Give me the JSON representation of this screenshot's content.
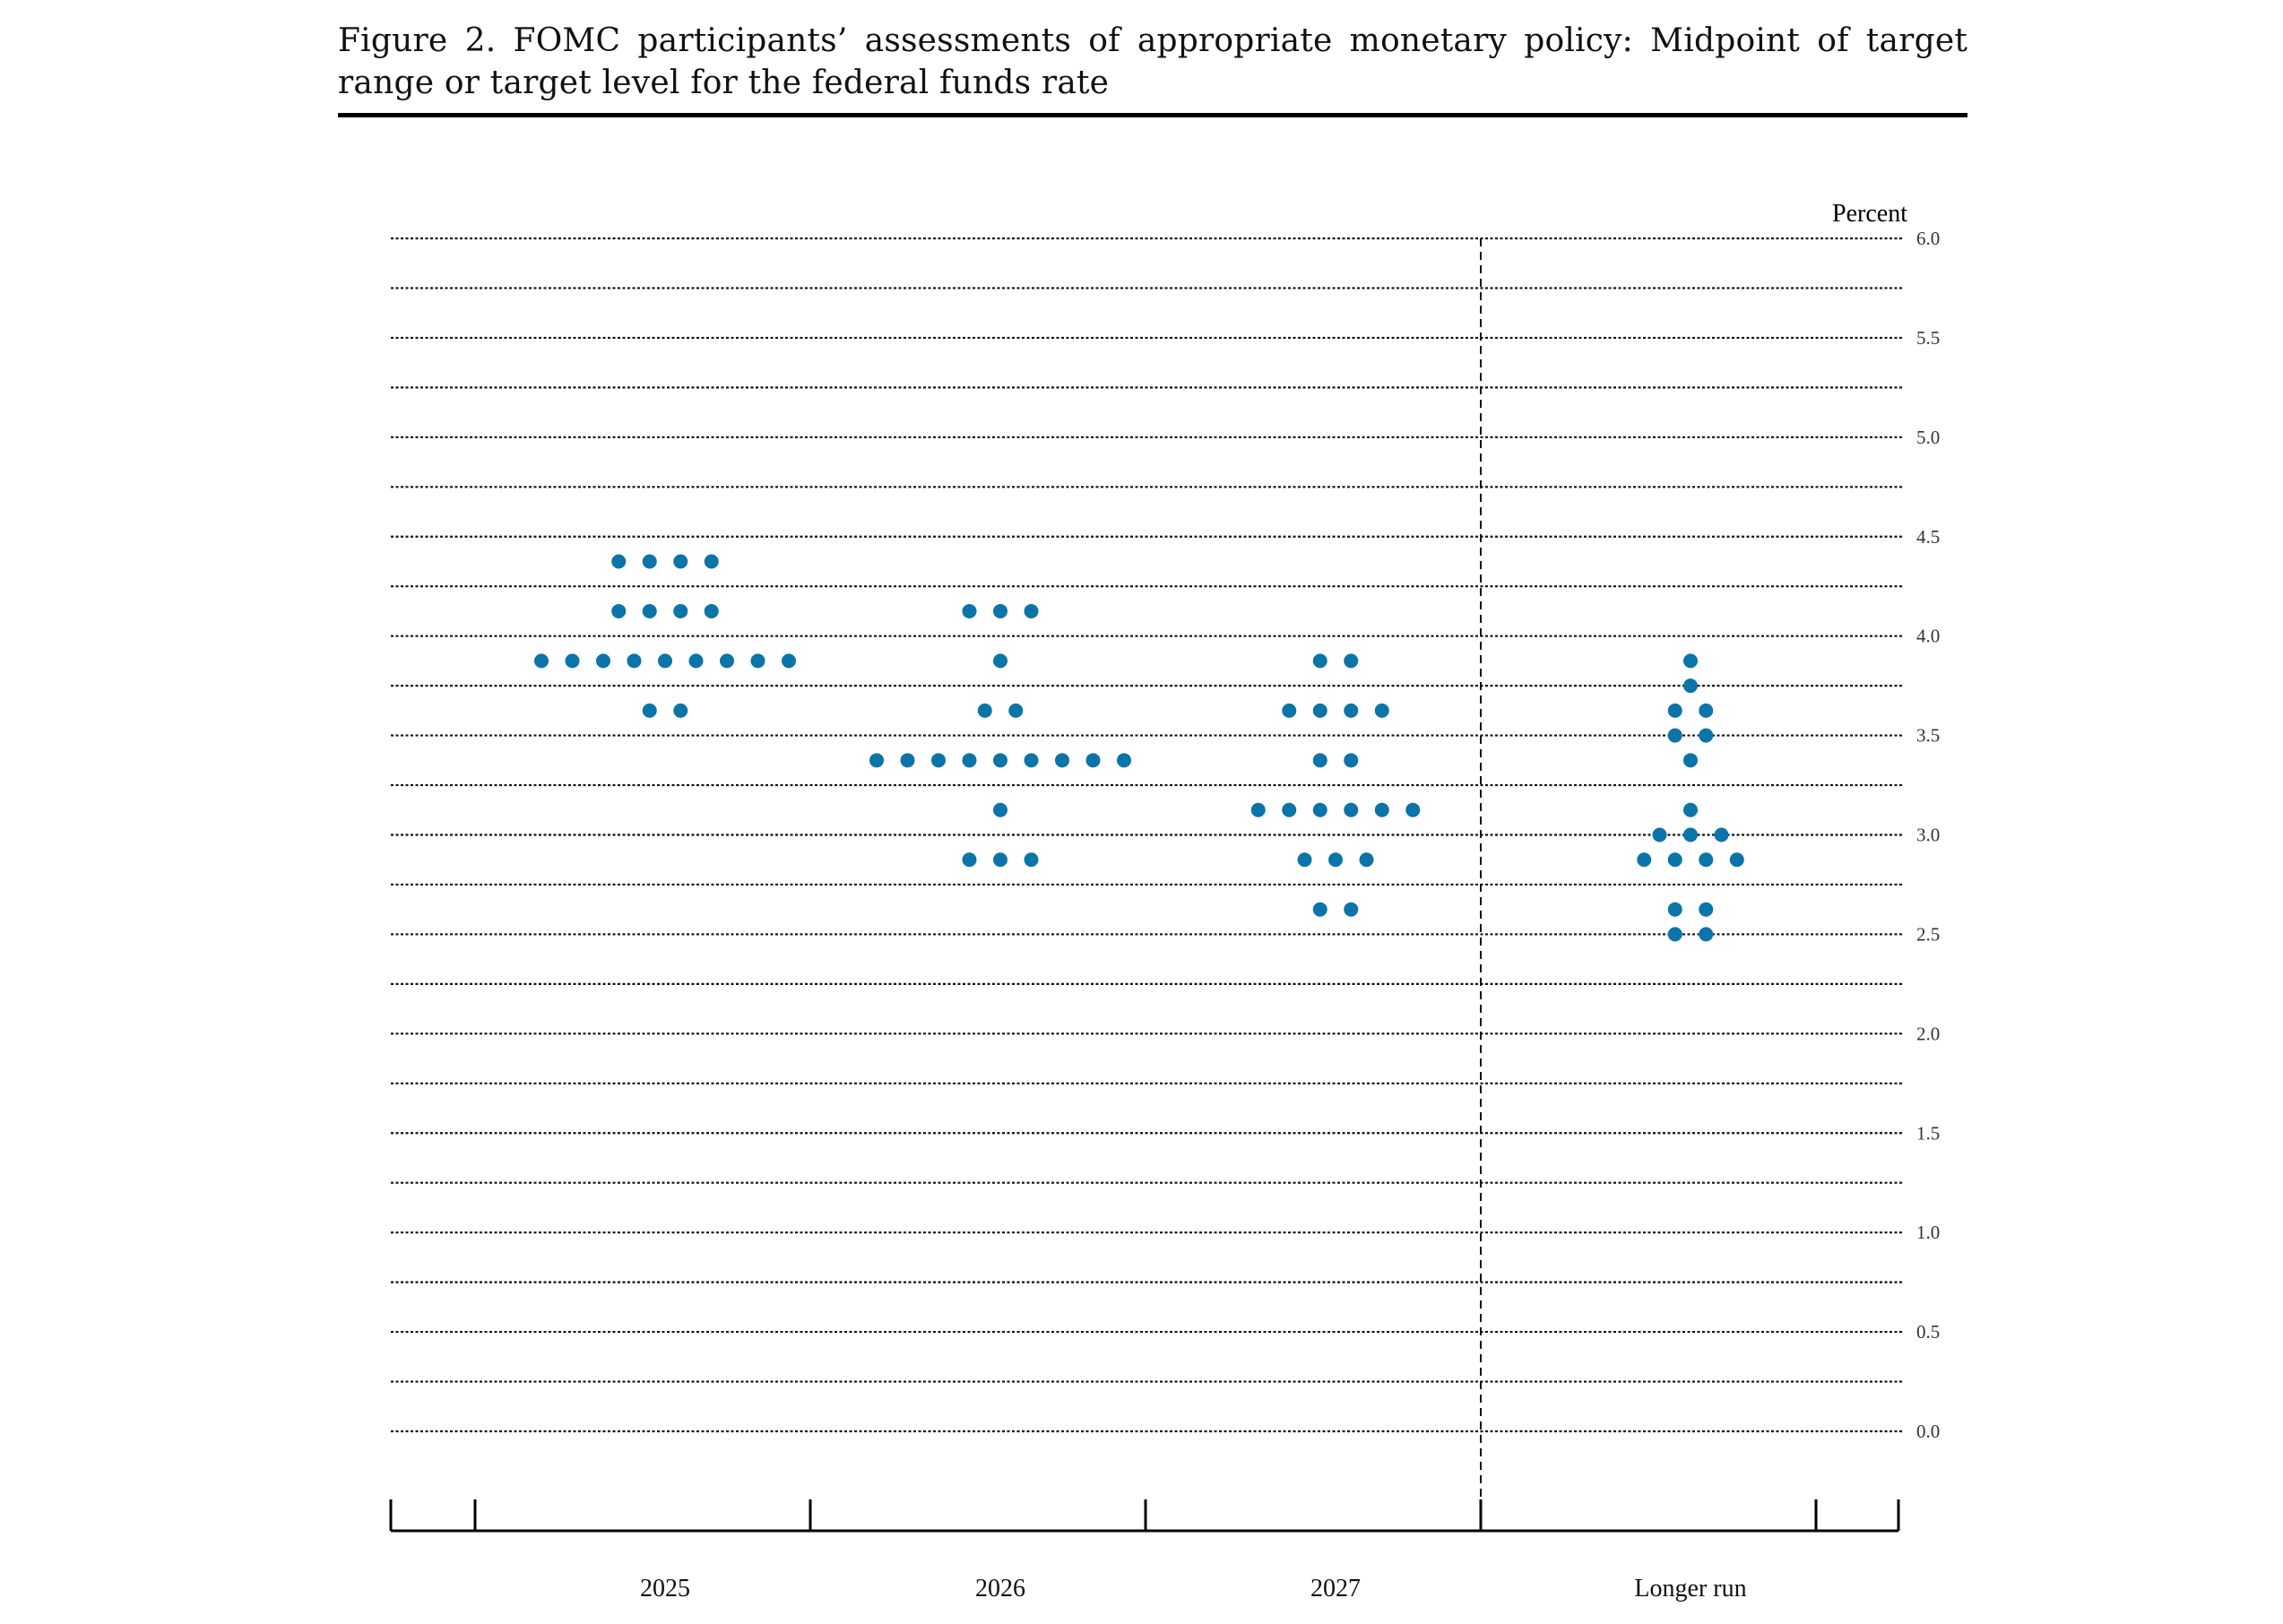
{
  "figure": {
    "title": "Figure 2.  FOMC participants’ assessments of appropriate monetary policy: Midpoint of target range or target level for the federal funds rate"
  },
  "chart_data": {
    "type": "scatter",
    "title": "Figure 2.  FOMC participants’ assessments of appropriate monetary policy: Midpoint of target range or target level for the federal funds rate",
    "ylabel": "Percent",
    "xlabel": "",
    "ylim": [
      0.0,
      6.0
    ],
    "ytick_step": 0.25,
    "ytick_labels": [
      "0.0",
      "0.5",
      "1.0",
      "1.5",
      "2.0",
      "2.5",
      "3.0",
      "3.5",
      "4.0",
      "4.5",
      "5.0",
      "5.5",
      "6.0"
    ],
    "categories": [
      "2025",
      "2026",
      "2027",
      "Longer run"
    ],
    "grid": true,
    "dot_color": "#0b74a8",
    "groups": [
      {
        "category": "2025",
        "points": [
          {
            "y": 4.375,
            "count": 4
          },
          {
            "y": 4.125,
            "count": 4
          },
          {
            "y": 3.875,
            "count": 9
          },
          {
            "y": 3.625,
            "count": 2
          }
        ]
      },
      {
        "category": "2026",
        "points": [
          {
            "y": 4.125,
            "count": 3
          },
          {
            "y": 3.875,
            "count": 1
          },
          {
            "y": 3.625,
            "count": 2
          },
          {
            "y": 3.375,
            "count": 9
          },
          {
            "y": 3.125,
            "count": 1
          },
          {
            "y": 2.875,
            "count": 3
          }
        ]
      },
      {
        "category": "2027",
        "points": [
          {
            "y": 3.875,
            "count": 2
          },
          {
            "y": 3.625,
            "count": 4
          },
          {
            "y": 3.375,
            "count": 2
          },
          {
            "y": 3.125,
            "count": 6
          },
          {
            "y": 2.875,
            "count": 3
          },
          {
            "y": 2.625,
            "count": 2
          }
        ]
      },
      {
        "category": "Longer run",
        "points": [
          {
            "y": 3.875,
            "count": 1
          },
          {
            "y": 3.75,
            "count": 1
          },
          {
            "y": 3.625,
            "count": 2
          },
          {
            "y": 3.5,
            "count": 2
          },
          {
            "y": 3.375,
            "count": 1
          },
          {
            "y": 3.125,
            "count": 1
          },
          {
            "y": 3.0,
            "count": 3
          },
          {
            "y": 2.875,
            "count": 4
          },
          {
            "y": 2.625,
            "count": 2
          },
          {
            "y": 2.5,
            "count": 2
          }
        ]
      }
    ]
  }
}
